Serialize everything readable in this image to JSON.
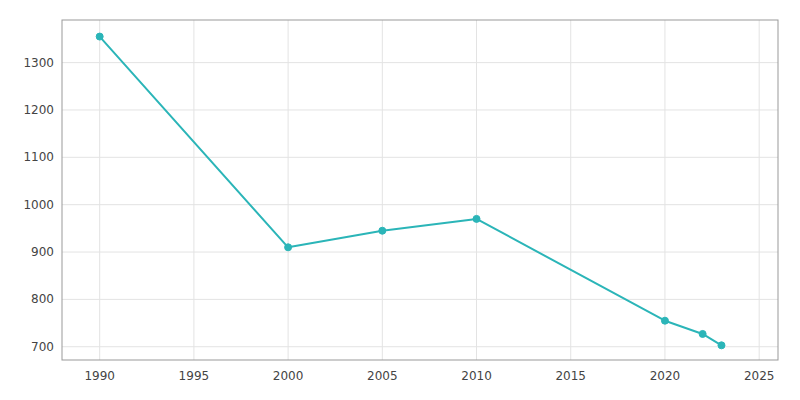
{
  "chart_data": {
    "type": "line",
    "x": [
      1990,
      2000,
      2005,
      2010,
      2020,
      2022,
      2023
    ],
    "values": [
      1355,
      910,
      945,
      970,
      755,
      727,
      703
    ],
    "color": "#2BB5B8",
    "marker": "circle",
    "xlim": [
      1988,
      2026
    ],
    "ylim": [
      672,
      1390
    ],
    "xticks": [
      1990,
      1995,
      2000,
      2005,
      2010,
      2015,
      2020,
      2025
    ],
    "yticks": [
      700,
      800,
      900,
      1000,
      1100,
      1200,
      1300
    ],
    "grid": true
  }
}
